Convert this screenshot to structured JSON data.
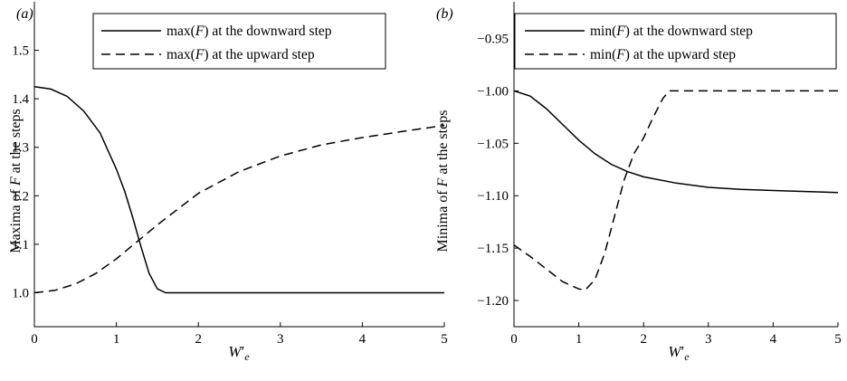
{
  "panels": [
    {
      "panel_label": "(a)",
      "ylabel_main": "Maxima of ",
      "ylabel_var": "F",
      "ylabel_rest": " at the steps",
      "xlabel_main": "W",
      "xlabel_prime": "′",
      "xlabel_sub": "e",
      "legend": [
        {
          "fn": "max(",
          "var": "F",
          "rest": ") at the downward step"
        },
        {
          "fn": "max(",
          "var": "F",
          "rest": ") at the upward step"
        }
      ]
    },
    {
      "panel_label": "(b)",
      "ylabel_main": "Minima of ",
      "ylabel_var": "F",
      "ylabel_rest": " at the steps",
      "xlabel_main": "W",
      "xlabel_prime": "′",
      "xlabel_sub": "e",
      "legend": [
        {
          "fn": "min(",
          "var": "F",
          "rest": ") at the downward step"
        },
        {
          "fn": "min(",
          "var": "F",
          "rest": ") at the upward step"
        }
      ]
    }
  ],
  "chart_data": [
    {
      "type": "line",
      "xlim": [
        0,
        5
      ],
      "ylim": [
        0.93,
        1.6
      ],
      "xticks": [
        0,
        1,
        2,
        3,
        4,
        5
      ],
      "yticks": [
        1.0,
        1.1,
        1.2,
        1.3,
        1.4,
        1.5
      ],
      "ytick_labels": [
        "1.0",
        "1.1",
        "1.2",
        "1.3",
        "1.4",
        "1.5"
      ],
      "legend_position": "top",
      "series": [
        {
          "name": "max(F) at the downward step",
          "style": "solid",
          "x": [
            0,
            0.2,
            0.4,
            0.6,
            0.8,
            1.0,
            1.1,
            1.2,
            1.3,
            1.4,
            1.5,
            1.6,
            2.0,
            3.0,
            4.0,
            5.0
          ],
          "y": [
            1.425,
            1.42,
            1.405,
            1.375,
            1.33,
            1.255,
            1.21,
            1.155,
            1.095,
            1.04,
            1.008,
            1.0,
            1.0,
            1.0,
            1.0,
            1.0
          ]
        },
        {
          "name": "max(F) at the upward step",
          "style": "dashed",
          "x": [
            0,
            0.25,
            0.5,
            0.75,
            1.0,
            1.25,
            1.5,
            2.0,
            2.5,
            3.0,
            3.5,
            4.0,
            4.5,
            5.0
          ],
          "y": [
            1.0,
            1.005,
            1.018,
            1.04,
            1.07,
            1.105,
            1.14,
            1.205,
            1.25,
            1.282,
            1.305,
            1.32,
            1.333,
            1.345
          ]
        }
      ]
    },
    {
      "type": "line",
      "xlim": [
        0,
        5
      ],
      "ylim": [
        -1.225,
        -0.915
      ],
      "xticks": [
        0,
        1,
        2,
        3,
        4,
        5
      ],
      "yticks": [
        -1.2,
        -1.15,
        -1.1,
        -1.05,
        -1.0,
        -0.95
      ],
      "ytick_labels": [
        "−1.20",
        "−1.15",
        "−1.10",
        "−1.05",
        "−1.00",
        "−0.95"
      ],
      "legend_position": "top",
      "series": [
        {
          "name": "min(F) at the downward step",
          "style": "solid",
          "x": [
            0,
            0.25,
            0.5,
            0.75,
            1.0,
            1.25,
            1.5,
            1.75,
            2.0,
            2.5,
            3.0,
            3.5,
            4.0,
            4.5,
            5.0
          ],
          "y": [
            -1.0,
            -1.005,
            -1.017,
            -1.032,
            -1.047,
            -1.06,
            -1.07,
            -1.077,
            -1.082,
            -1.088,
            -1.092,
            -1.094,
            -1.095,
            -1.096,
            -1.097
          ]
        },
        {
          "name": "min(F) at the upward step",
          "style": "dashed",
          "x": [
            0,
            0.25,
            0.5,
            0.75,
            1.0,
            1.1,
            1.25,
            1.4,
            1.55,
            1.7,
            1.85,
            2.0,
            2.15,
            2.3,
            2.4,
            2.6,
            3.0,
            4.0,
            5.0
          ],
          "y": [
            -1.147,
            -1.158,
            -1.17,
            -1.182,
            -1.189,
            -1.19,
            -1.18,
            -1.155,
            -1.12,
            -1.085,
            -1.06,
            -1.045,
            -1.025,
            -1.007,
            -1.0,
            -1.0,
            -1.0,
            -1.0,
            -1.0
          ]
        }
      ]
    }
  ]
}
